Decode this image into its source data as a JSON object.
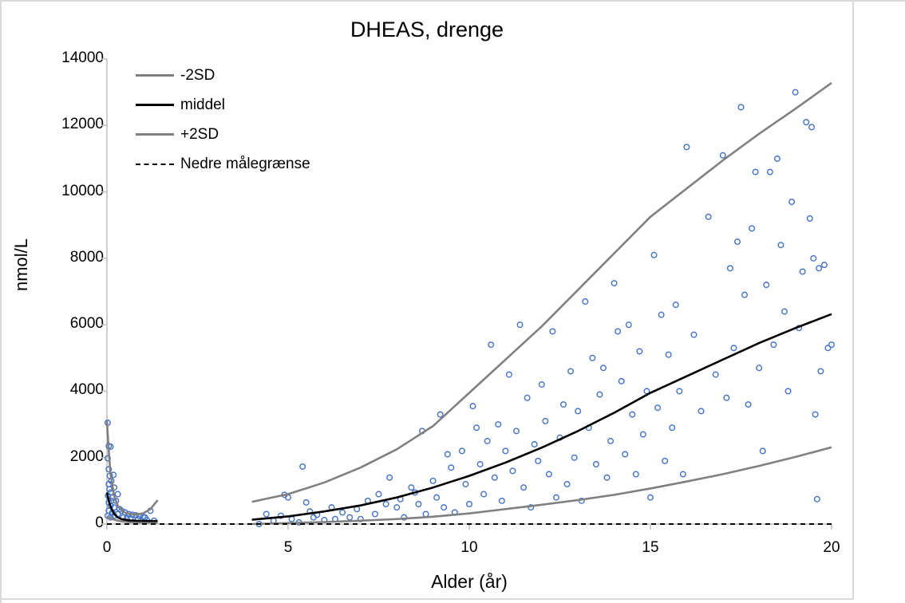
{
  "chart_data": {
    "type": "scatter",
    "title": "DHEAS, drenge",
    "xlabel": "Alder (år)",
    "ylabel": "nmol/L",
    "xlim": [
      0,
      20
    ],
    "ylim": [
      0,
      14000
    ],
    "x_ticks": [
      "0",
      "5",
      "10",
      "15",
      "20"
    ],
    "y_ticks": [
      "0",
      "2000",
      "4000",
      "6000",
      "8000",
      "10000",
      "12000",
      "14000"
    ],
    "grid": false,
    "legend_position": "top-left",
    "legend": [
      {
        "label": "-2SD",
        "color": "#808080",
        "style": "solid"
      },
      {
        "label": "middel",
        "color": "#000000",
        "style": "solid"
      },
      {
        "label": "+2SD",
        "color": "#808080",
        "style": "solid"
      },
      {
        "label": "Nedre målegrænse",
        "color": "#000000",
        "style": "dashed"
      }
    ],
    "scatter_color": "#4472c4",
    "lines": {
      "upper_infant": {
        "x": [
          0,
          0.05,
          0.1,
          0.2,
          0.3,
          0.4,
          0.5,
          0.6,
          0.8,
          1.0,
          1.2,
          1.4
        ],
        "y": [
          3100,
          2200,
          1500,
          850,
          550,
          420,
          350,
          310,
          290,
          320,
          450,
          720
        ]
      },
      "middle_infant": {
        "x": [
          0,
          0.05,
          0.1,
          0.2,
          0.3,
          0.4,
          0.6,
          0.8,
          1.0,
          1.4
        ],
        "y": [
          950,
          700,
          520,
          300,
          200,
          150,
          110,
          100,
          95,
          90
        ]
      },
      "lower_infant": {
        "x": [
          0,
          0.2,
          0.4,
          0.6,
          0.8,
          1.0,
          1.4
        ],
        "y": [
          220,
          130,
          80,
          60,
          50,
          45,
          40
        ]
      },
      "upper": {
        "x": [
          4,
          5,
          6,
          7,
          8,
          9,
          10,
          11,
          12,
          13,
          14,
          15,
          16,
          17,
          18,
          19,
          20
        ],
        "y": [
          670,
          900,
          1250,
          1700,
          2250,
          2950,
          3950,
          4950,
          5950,
          7050,
          8150,
          9250,
          10100,
          10950,
          11750,
          12500,
          13280
        ]
      },
      "middle": {
        "x": [
          4,
          5,
          6,
          7,
          8,
          9,
          10,
          11,
          12,
          13,
          14,
          15,
          16,
          17,
          18,
          19,
          20
        ],
        "y": [
          130,
          230,
          380,
          560,
          800,
          1100,
          1450,
          1850,
          2300,
          2800,
          3350,
          3950,
          4450,
          4950,
          5450,
          5900,
          6320
        ]
      },
      "lower": {
        "x": [
          4,
          5,
          6,
          7,
          8,
          9,
          10,
          11,
          12,
          13,
          14,
          15,
          16,
          17,
          18,
          19,
          20
        ],
        "y": [
          0,
          30,
          60,
          100,
          150,
          220,
          320,
          450,
          580,
          720,
          880,
          1070,
          1280,
          1500,
          1750,
          2020,
          2310
        ]
      },
      "detection_limit": {
        "x": [
          0,
          20
        ],
        "y": [
          0,
          0
        ]
      }
    },
    "points": [
      [
        0.02,
        3050
      ],
      [
        0.05,
        2350
      ],
      [
        0.1,
        2330
      ],
      [
        0.02,
        1980
      ],
      [
        0.05,
        1650
      ],
      [
        0.08,
        1450
      ],
      [
        0.18,
        1480
      ],
      [
        0.12,
        1300
      ],
      [
        0.05,
        1200
      ],
      [
        0.2,
        1100
      ],
      [
        0.1,
        950
      ],
      [
        0.3,
        900
      ],
      [
        0.15,
        800
      ],
      [
        0.25,
        700
      ],
      [
        0.05,
        650
      ],
      [
        0.1,
        550
      ],
      [
        0.2,
        500
      ],
      [
        0.35,
        450
      ],
      [
        0.4,
        400
      ],
      [
        0.5,
        350
      ],
      [
        0.6,
        300
      ],
      [
        0.7,
        280
      ],
      [
        0.8,
        260
      ],
      [
        0.9,
        240
      ],
      [
        1.0,
        220
      ],
      [
        1.2,
        400
      ],
      [
        0.3,
        300
      ],
      [
        0.15,
        350
      ],
      [
        0.05,
        400
      ],
      [
        0.45,
        200
      ],
      [
        0.55,
        180
      ],
      [
        0.65,
        160
      ],
      [
        0.85,
        150
      ],
      [
        1.05,
        200
      ],
      [
        1.1,
        120
      ],
      [
        1.3,
        100
      ],
      [
        0.02,
        250
      ],
      [
        0.1,
        200
      ],
      [
        0.2,
        250
      ],
      [
        0.03,
        850
      ],
      [
        0.07,
        1050
      ],
      [
        0.12,
        700
      ],
      [
        4.2,
        0
      ],
      [
        4.4,
        300
      ],
      [
        4.6,
        100
      ],
      [
        4.8,
        250
      ],
      [
        4.9,
        880
      ],
      [
        5.0,
        800
      ],
      [
        5.1,
        150
      ],
      [
        5.3,
        50
      ],
      [
        5.4,
        1730
      ],
      [
        5.5,
        650
      ],
      [
        5.6,
        380
      ],
      [
        5.7,
        200
      ],
      [
        5.8,
        280
      ],
      [
        6.0,
        120
      ],
      [
        6.2,
        500
      ],
      [
        6.3,
        150
      ],
      [
        6.5,
        350
      ],
      [
        6.7,
        200
      ],
      [
        6.9,
        450
      ],
      [
        7.0,
        150
      ],
      [
        7.2,
        700
      ],
      [
        7.4,
        300
      ],
      [
        7.5,
        900
      ],
      [
        7.7,
        600
      ],
      [
        7.8,
        1400
      ],
      [
        8.0,
        500
      ],
      [
        8.1,
        750
      ],
      [
        8.2,
        200
      ],
      [
        8.4,
        1100
      ],
      [
        8.5,
        950
      ],
      [
        8.6,
        600
      ],
      [
        8.7,
        2800
      ],
      [
        8.8,
        300
      ],
      [
        9.0,
        1300
      ],
      [
        9.1,
        800
      ],
      [
        9.2,
        3300
      ],
      [
        9.3,
        500
      ],
      [
        9.4,
        2100
      ],
      [
        9.5,
        1700
      ],
      [
        9.6,
        350
      ],
      [
        9.8,
        2200
      ],
      [
        9.9,
        1200
      ],
      [
        10.0,
        600
      ],
      [
        10.1,
        3550
      ],
      [
        10.2,
        2900
      ],
      [
        10.3,
        1800
      ],
      [
        10.4,
        900
      ],
      [
        10.5,
        2500
      ],
      [
        10.6,
        5400
      ],
      [
        10.7,
        1400
      ],
      [
        10.8,
        3000
      ],
      [
        10.9,
        700
      ],
      [
        11.0,
        2200
      ],
      [
        11.1,
        4500
      ],
      [
        11.2,
        1600
      ],
      [
        11.3,
        2800
      ],
      [
        11.4,
        6000
      ],
      [
        11.5,
        1100
      ],
      [
        11.6,
        3800
      ],
      [
        11.7,
        500
      ],
      [
        11.8,
        2400
      ],
      [
        11.9,
        1900
      ],
      [
        12.0,
        4200
      ],
      [
        12.1,
        3100
      ],
      [
        12.2,
        1500
      ],
      [
        12.3,
        5800
      ],
      [
        12.4,
        800
      ],
      [
        12.5,
        2600
      ],
      [
        12.6,
        3600
      ],
      [
        12.7,
        1200
      ],
      [
        12.8,
        4600
      ],
      [
        12.9,
        2000
      ],
      [
        13.0,
        3400
      ],
      [
        13.1,
        700
      ],
      [
        13.2,
        6700
      ],
      [
        13.3,
        2900
      ],
      [
        13.4,
        5000
      ],
      [
        13.5,
        1800
      ],
      [
        13.6,
        3900
      ],
      [
        13.7,
        4700
      ],
      [
        13.8,
        1400
      ],
      [
        13.9,
        2500
      ],
      [
        14.0,
        7250
      ],
      [
        14.1,
        5800
      ],
      [
        14.2,
        4300
      ],
      [
        14.3,
        2100
      ],
      [
        14.4,
        6000
      ],
      [
        14.5,
        3300
      ],
      [
        14.6,
        1500
      ],
      [
        14.7,
        5200
      ],
      [
        14.8,
        2700
      ],
      [
        14.9,
        4000
      ],
      [
        15.0,
        800
      ],
      [
        15.1,
        8100
      ],
      [
        15.2,
        3500
      ],
      [
        15.3,
        6300
      ],
      [
        15.4,
        1900
      ],
      [
        15.5,
        5100
      ],
      [
        15.6,
        2900
      ],
      [
        15.7,
        6600
      ],
      [
        15.8,
        4000
      ],
      [
        15.9,
        1500
      ],
      [
        16.0,
        11350
      ],
      [
        16.2,
        5700
      ],
      [
        16.4,
        3400
      ],
      [
        16.6,
        9250
      ],
      [
        16.8,
        4500
      ],
      [
        17.0,
        11100
      ],
      [
        17.1,
        3800
      ],
      [
        17.2,
        7700
      ],
      [
        17.3,
        5300
      ],
      [
        17.4,
        8500
      ],
      [
        17.5,
        12550
      ],
      [
        17.6,
        6900
      ],
      [
        17.7,
        3600
      ],
      [
        17.8,
        8900
      ],
      [
        17.9,
        10600
      ],
      [
        18.0,
        4700
      ],
      [
        18.1,
        2200
      ],
      [
        18.2,
        7200
      ],
      [
        18.3,
        10600
      ],
      [
        18.4,
        5400
      ],
      [
        18.5,
        11000
      ],
      [
        18.6,
        8400
      ],
      [
        18.7,
        6400
      ],
      [
        18.8,
        4000
      ],
      [
        18.9,
        9700
      ],
      [
        19.0,
        13000
      ],
      [
        19.1,
        5900
      ],
      [
        19.2,
        7600
      ],
      [
        19.3,
        12100
      ],
      [
        19.4,
        9200
      ],
      [
        19.5,
        8000
      ],
      [
        19.6,
        750
      ],
      [
        19.7,
        4600
      ],
      [
        19.8,
        7800
      ],
      [
        19.9,
        5300
      ],
      [
        19.45,
        11950
      ],
      [
        19.55,
        3300
      ],
      [
        19.65,
        7700
      ],
      [
        20.0,
        5400
      ]
    ]
  }
}
